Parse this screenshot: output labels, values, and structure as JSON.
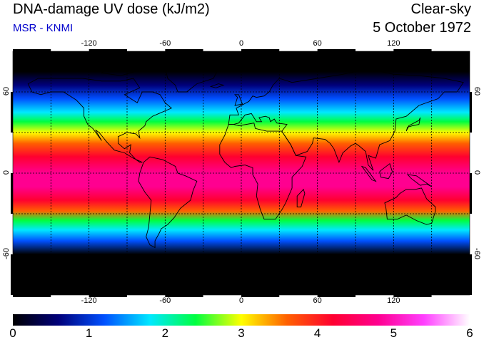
{
  "header": {
    "title": "DNA-damage UV dose (kJ/m2)",
    "subtitle": "MSR - KNMI",
    "sky": "Clear-sky",
    "date": "5 October 1972"
  },
  "map": {
    "lon_ticks": [
      "-120",
      "-60",
      "0",
      "60",
      "120"
    ],
    "lat_ticks": [
      "60",
      "0",
      "-60"
    ],
    "lon_range": [
      -180,
      180
    ],
    "lat_range": [
      -90,
      90
    ],
    "gridlines": "dashed every 30 degrees",
    "projection": "equirectangular",
    "coastlines": true
  },
  "colorbar": {
    "labels": [
      "0",
      "1",
      "2",
      "3",
      "4",
      "5",
      "6"
    ],
    "range": [
      0,
      6
    ],
    "colors": [
      "#000000",
      "#00007a",
      "#0050ff",
      "#00e8ff",
      "#00ff40",
      "#ffff00",
      "#ff6000",
      "#ff0030",
      "#ff0090",
      "#ff40ff",
      "#ffffff"
    ]
  },
  "dose_profile": [
    {
      "lat": 90,
      "dose": 0.0
    },
    {
      "lat": 75,
      "dose": 0.05
    },
    {
      "lat": 65,
      "dose": 0.35
    },
    {
      "lat": 55,
      "dose": 1.0
    },
    {
      "lat": 45,
      "dose": 1.7
    },
    {
      "lat": 38,
      "dose": 2.3
    },
    {
      "lat": 30,
      "dose": 3.0
    },
    {
      "lat": 22,
      "dose": 3.7
    },
    {
      "lat": 12,
      "dose": 4.4
    },
    {
      "lat": 0,
      "dose": 4.8
    },
    {
      "lat": -10,
      "dose": 4.7
    },
    {
      "lat": -20,
      "dose": 4.2
    },
    {
      "lat": -28,
      "dose": 3.4
    },
    {
      "lat": -35,
      "dose": 2.6
    },
    {
      "lat": -42,
      "dose": 1.6
    },
    {
      "lat": -50,
      "dose": 0.9
    },
    {
      "lat": -60,
      "dose": 0.3
    },
    {
      "lat": -75,
      "dose": 0.0
    },
    {
      "lat": -90,
      "dose": 0.0
    }
  ]
}
